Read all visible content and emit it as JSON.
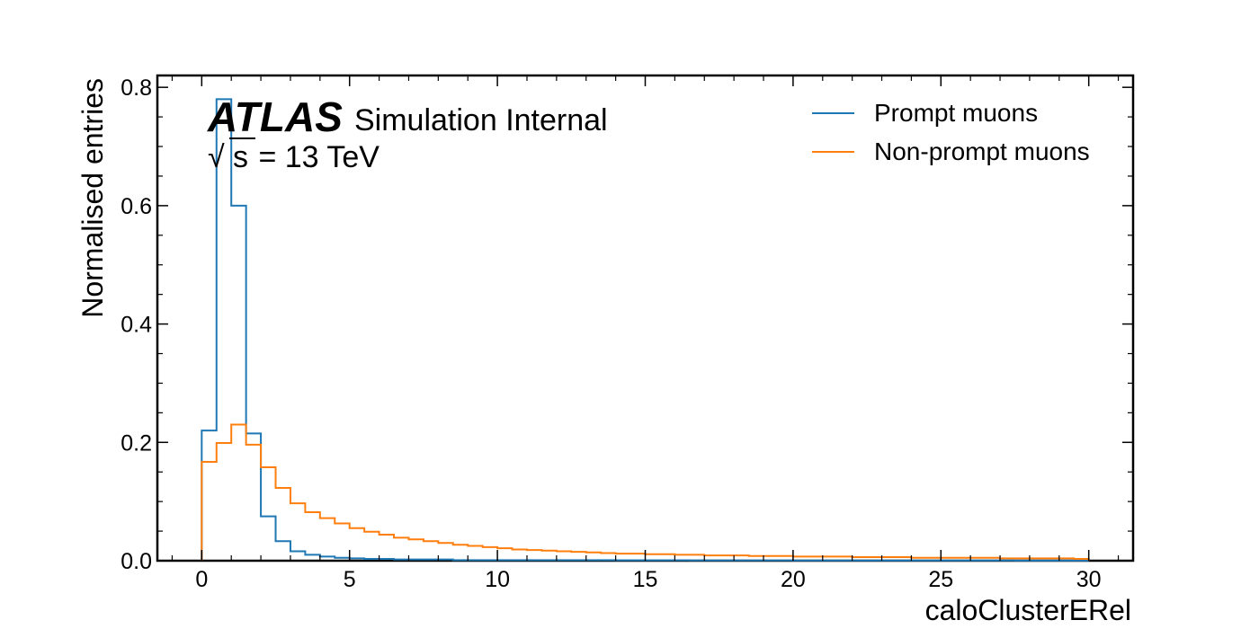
{
  "chart_data": {
    "type": "line",
    "style": "step-histogram",
    "xlabel": "caloClusterERel",
    "ylabel": "Normalised entries",
    "xlim": [
      -1.5,
      31.5
    ],
    "ylim": [
      0,
      0.82
    ],
    "x_ticks": [
      0,
      5,
      10,
      15,
      20,
      25,
      30
    ],
    "x_tick_labels": [
      "0",
      "5",
      "10",
      "15",
      "20",
      "25",
      "30"
    ],
    "y_ticks": [
      0.0,
      0.2,
      0.4,
      0.6,
      0.8
    ],
    "y_tick_labels": [
      "0.0",
      "0.2",
      "0.4",
      "0.6",
      "0.8"
    ],
    "bin_edges": [
      0,
      0.5,
      1,
      1.5,
      2,
      2.5,
      3,
      3.5,
      4,
      4.5,
      5,
      5.5,
      6,
      6.5,
      7,
      7.5,
      8,
      8.5,
      9,
      9.5,
      10,
      10.5,
      11,
      11.5,
      12,
      12.5,
      13,
      13.5,
      14,
      14.5,
      15,
      15.5,
      16,
      16.5,
      17,
      17.5,
      18,
      18.5,
      19,
      19.5,
      20,
      20.5,
      21,
      21.5,
      22,
      22.5,
      23,
      23.5,
      24,
      24.5,
      25,
      25.5,
      26,
      26.5,
      27,
      27.5,
      28,
      28.5,
      29,
      29.5,
      30
    ],
    "series": [
      {
        "name": "Prompt muons",
        "color": "#1f77b4",
        "values": [
          0.22,
          0.78,
          0.6,
          0.215,
          0.075,
          0.033,
          0.016,
          0.01,
          0.007,
          0.005,
          0.004,
          0.003,
          0.003,
          0.002,
          0.002,
          0.002,
          0.002,
          0.001,
          0.001,
          0.001,
          0.001,
          0.001,
          0.001,
          0.001,
          0.001,
          0.001,
          0.001,
          0.001,
          0.0008,
          0.0008,
          0.0008,
          0.0007,
          0.0007,
          0.0006,
          0.0006,
          0.0006,
          0.0005,
          0.0005,
          0.0005,
          0.0005,
          0.0004,
          0.0004,
          0.0004,
          0.0004,
          0.0004,
          0.0003,
          0.0003,
          0.0003,
          0.0003,
          0.0003,
          0.0003,
          0.0003,
          0.0003,
          0.0003,
          0.0003,
          0.0002,
          0.0002,
          0.0002,
          0.0002,
          0.0002
        ]
      },
      {
        "name": "Non-prompt muons",
        "color": "#ff7f0e",
        "values": [
          0.167,
          0.199,
          0.23,
          0.196,
          0.158,
          0.123,
          0.097,
          0.082,
          0.072,
          0.063,
          0.055,
          0.049,
          0.044,
          0.039,
          0.036,
          0.033,
          0.03,
          0.027,
          0.025,
          0.023,
          0.021,
          0.019,
          0.018,
          0.017,
          0.016,
          0.015,
          0.014,
          0.013,
          0.012,
          0.012,
          0.011,
          0.011,
          0.01,
          0.01,
          0.009,
          0.009,
          0.009,
          0.008,
          0.008,
          0.008,
          0.007,
          0.007,
          0.007,
          0.007,
          0.006,
          0.006,
          0.006,
          0.006,
          0.005,
          0.005,
          0.005,
          0.005,
          0.005,
          0.005,
          0.004,
          0.004,
          0.004,
          0.004,
          0.004,
          0.003
        ]
      }
    ],
    "legend_placement": "top-right",
    "grid": false
  },
  "annotations": {
    "experiment": "ATLAS",
    "label": "Simulation Internal",
    "energy_sqrt": "√",
    "energy_s": "s",
    "energy_rest": " = 13 TeV"
  },
  "legend": {
    "items": [
      {
        "label": "Prompt muons",
        "color": "#1f77b4"
      },
      {
        "label": "Non-prompt muons",
        "color": "#ff7f0e"
      }
    ]
  }
}
